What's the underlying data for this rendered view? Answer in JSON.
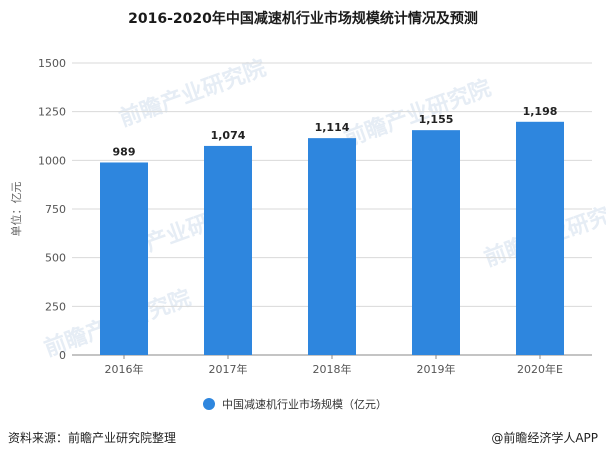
{
  "title": "2016-2020年中国减速机行业市场规模统计情况及预测",
  "source": "资料来源：前瞻产业研究院整理",
  "credit": "@前瞻经济学人APP",
  "watermark": "前瞻产业研究院",
  "colors": {
    "bar": "#2e86de",
    "grid": "#d9d9d9",
    "axis": "#888888"
  },
  "chart_data": {
    "type": "bar",
    "categories": [
      "2016年",
      "2017年",
      "2018年",
      "2019年",
      "2020年E"
    ],
    "series": [
      {
        "name": "中国减速机行业市场规模（亿元）",
        "values": [
          989,
          1074,
          1114,
          1155,
          1198
        ]
      }
    ],
    "value_labels": [
      "989",
      "1,074",
      "1,114",
      "1,155",
      "1,198"
    ],
    "ylabel": "单位：亿元",
    "ylim": [
      0,
      1500
    ],
    "yticks": [
      0,
      250,
      500,
      750,
      1000,
      1250,
      1500
    ],
    "grid": true,
    "legend": "bottom"
  }
}
